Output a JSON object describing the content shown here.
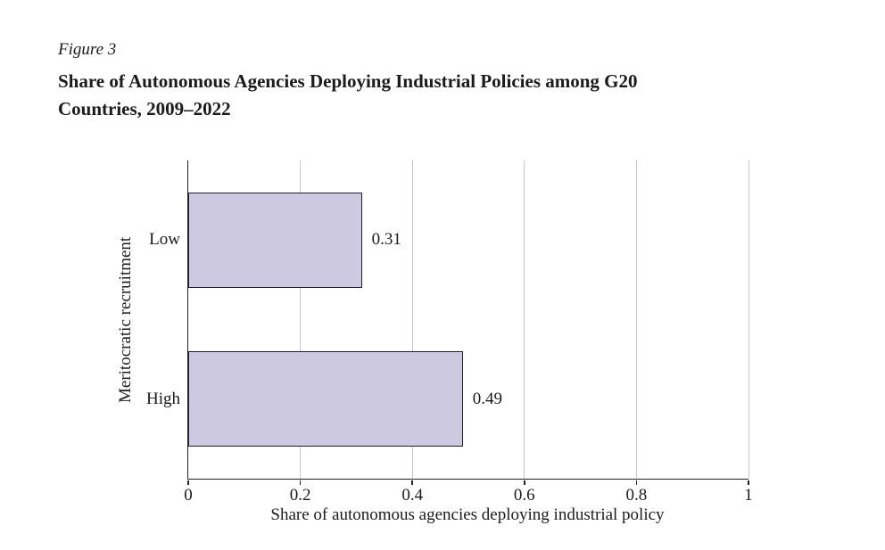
{
  "figure": {
    "label": "Figure 3",
    "title_line1": "Share of Autonomous Agencies Deploying Industrial Policies among G20",
    "title_line2": "Countries, 2009–2022"
  },
  "chart_data": {
    "type": "bar",
    "orientation": "horizontal",
    "title": "Share of Autonomous Agencies Deploying Industrial Policies among G20 Countries, 2009–2022",
    "categories": [
      "Low",
      "High"
    ],
    "values": [
      0.31,
      0.49
    ],
    "value_labels": [
      "0.31",
      "0.49"
    ],
    "xlabel": "Share of autonomous agencies deploying industrial policy",
    "ylabel": "Meritocratic recruitment",
    "xlim": [
      0,
      1
    ],
    "xticks": [
      0,
      0.2,
      0.4,
      0.6,
      0.8,
      1
    ],
    "xtick_labels": [
      "0",
      "0.2",
      "0.4",
      "0.6",
      "0.8",
      "1"
    ],
    "grid": "vertical-gridlines",
    "legend": "none",
    "colors": {
      "bar_fill": "#cdc9e0",
      "bar_border": "#1f1f2e",
      "gridline": "#c7c7c7",
      "axis": "#222222",
      "text": "#1b1b1b"
    }
  }
}
